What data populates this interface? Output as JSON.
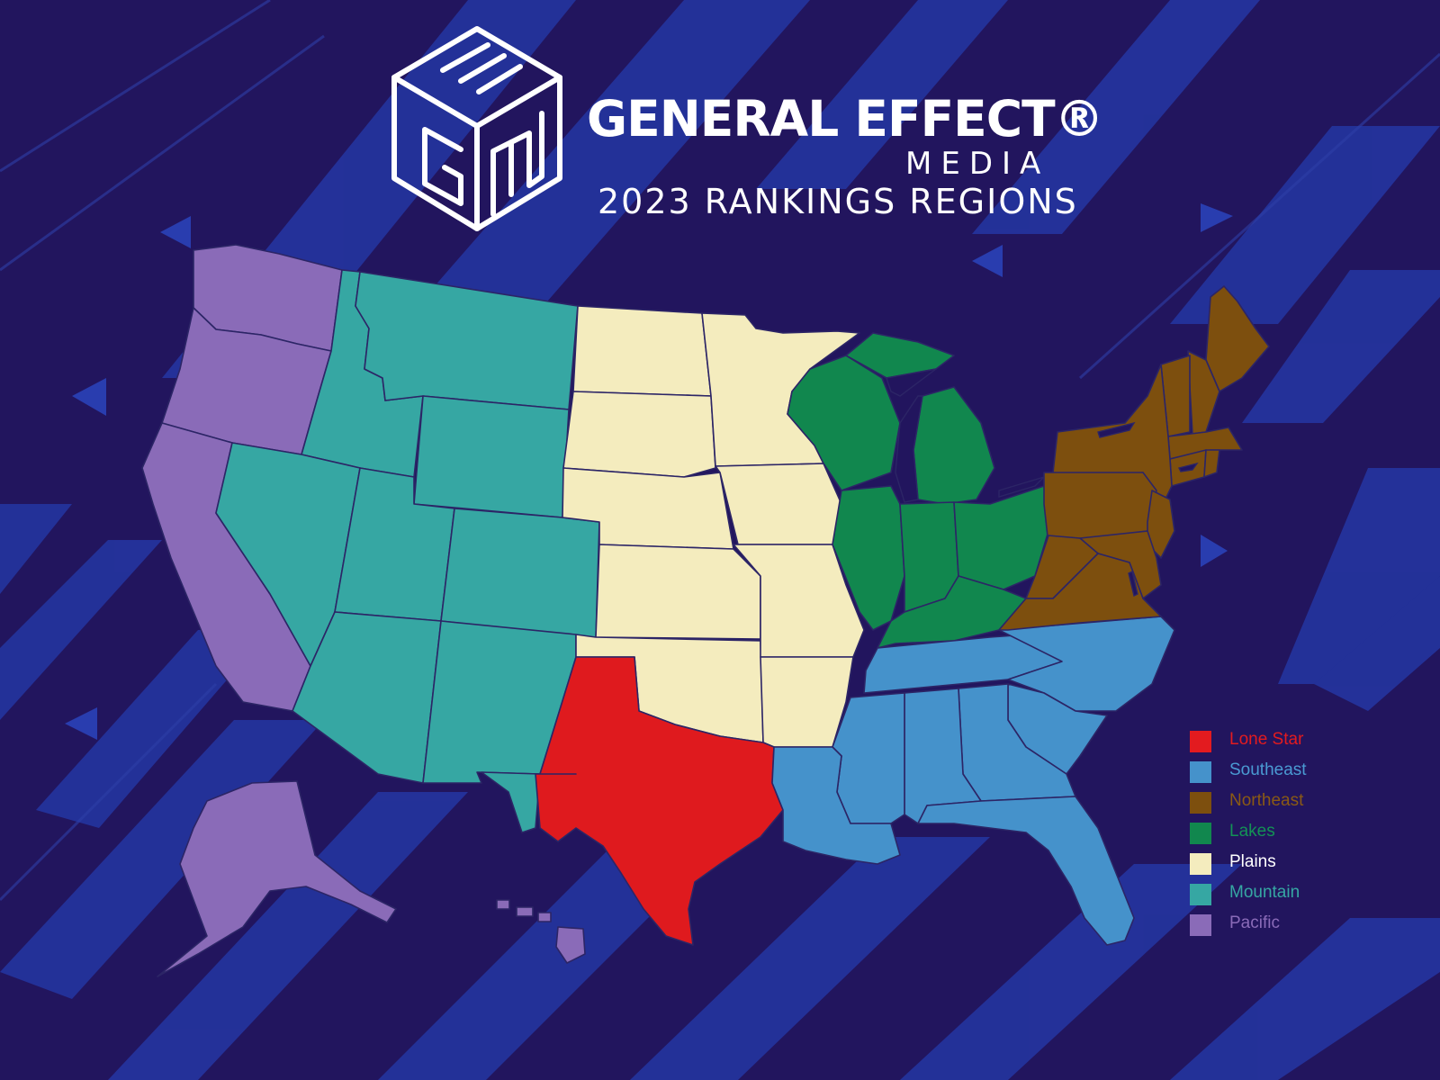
{
  "brand": {
    "name": "GENERAL EFFECT®",
    "media": "MEDIA",
    "subtitle": "2023 RANKINGS REGIONS",
    "logo_letters": "GEM"
  },
  "colors": {
    "background": "#22155e",
    "stripe": "#2a3aa8",
    "pacific": "#8a6bb8",
    "mountain": "#36a7a3",
    "plains": "#f4ecbe",
    "lakes": "#11874e",
    "northeast": "#7d4f0e",
    "southeast": "#4592cb",
    "lonestar": "#df1a1e",
    "border": "#2c2566"
  },
  "legend": {
    "items": [
      {
        "label": "Lone Star",
        "swatch": "#e31b1f",
        "text_color": "#e31b1f"
      },
      {
        "label": "Southeast",
        "swatch": "#4592cb",
        "text_color": "#4a9ad3"
      },
      {
        "label": "Northeast",
        "swatch": "#7d4f0e",
        "text_color": "#8a5a14"
      },
      {
        "label": "Lakes",
        "swatch": "#11874e",
        "text_color": "#139255"
      },
      {
        "label": "Plains",
        "swatch": "#f4ecbe",
        "text_color": "#ffffff"
      },
      {
        "label": "Mountain",
        "swatch": "#36a7a3",
        "text_color": "#36a7a3"
      },
      {
        "label": "Pacific",
        "swatch": "#8a6bb8",
        "text_color": "#8a6bb8"
      }
    ]
  },
  "regions": [
    {
      "id": "pacific",
      "name": "Pacific",
      "states": [
        "Washington",
        "Oregon",
        "California",
        "Alaska",
        "Hawaii"
      ]
    },
    {
      "id": "mountain",
      "name": "Mountain",
      "states": [
        "Idaho",
        "Montana",
        "Wyoming",
        "Nevada",
        "Utah",
        "Colorado",
        "Arizona",
        "New Mexico"
      ]
    },
    {
      "id": "plains",
      "name": "Plains",
      "states": [
        "North Dakota",
        "South Dakota",
        "Nebraska",
        "Kansas",
        "Oklahoma",
        "Minnesota",
        "Iowa",
        "Missouri",
        "Arkansas"
      ]
    },
    {
      "id": "lonestar",
      "name": "Lone Star",
      "states": [
        "Texas"
      ]
    },
    {
      "id": "lakes",
      "name": "Lakes",
      "states": [
        "Wisconsin",
        "Michigan",
        "Illinois",
        "Indiana",
        "Ohio",
        "Kentucky"
      ]
    },
    {
      "id": "southeast",
      "name": "Southeast",
      "states": [
        "Tennessee",
        "Louisiana",
        "Mississippi",
        "Alabama",
        "Georgia",
        "Florida",
        "South Carolina",
        "North Carolina"
      ]
    },
    {
      "id": "northeast",
      "name": "Northeast",
      "states": [
        "Maine",
        "New Hampshire",
        "Vermont",
        "Massachusetts",
        "Rhode Island",
        "Connecticut",
        "New York",
        "Pennsylvania",
        "New Jersey",
        "Delaware",
        "Maryland",
        "West Virginia",
        "Virginia"
      ]
    }
  ]
}
